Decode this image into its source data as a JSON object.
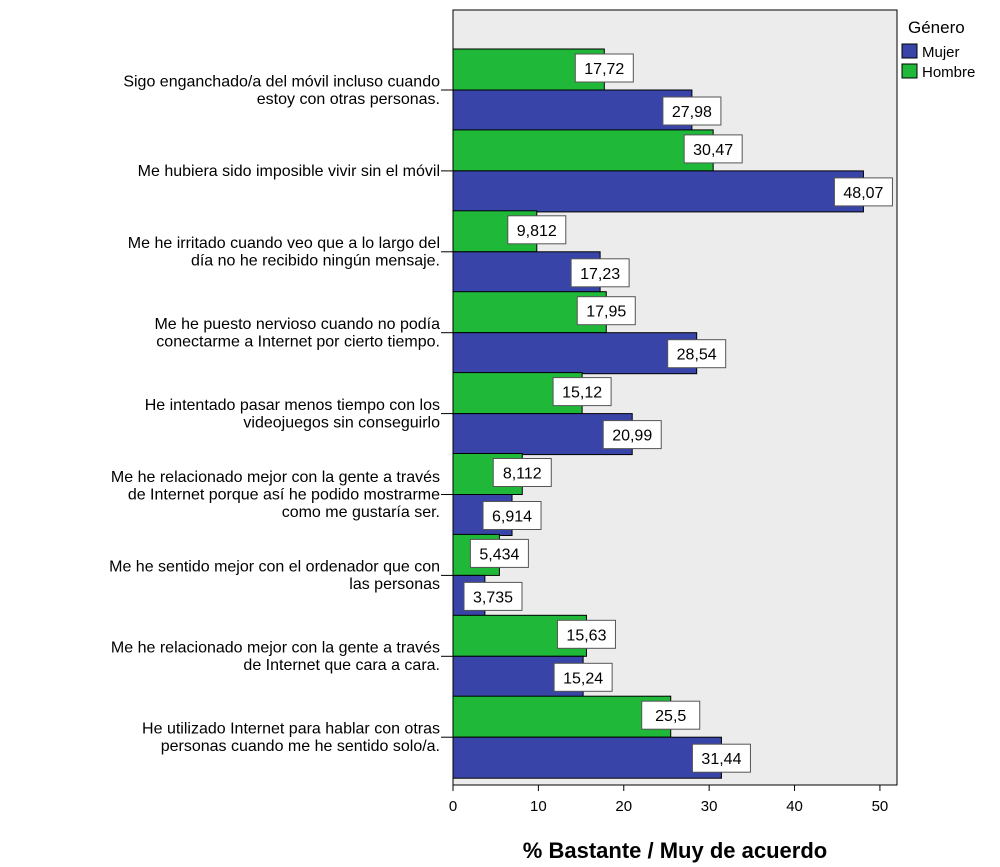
{
  "chart_data": {
    "type": "bar",
    "orientation": "horizontal",
    "xlabel": "% Bastante / Muy de acuerdo",
    "xlim": [
      0,
      52
    ],
    "xticks": [
      0,
      10,
      20,
      30,
      40,
      50
    ],
    "grid": false,
    "legend": {
      "title": "Género",
      "position": "top-right",
      "entries": [
        "Mujer",
        "Hombre"
      ]
    },
    "categories": [
      [
        "Sigo enganchado/a del móvil incluso cuando",
        "estoy con otras personas."
      ],
      [
        "Me hubiera sido imposible vivir sin el móvil"
      ],
      [
        "Me he irritado cuando veo que a lo largo del",
        "día no he recibido ningún mensaje."
      ],
      [
        "Me he puesto nervioso cuando no podía",
        "conectarme a Internet por cierto tiempo."
      ],
      [
        "He intentado pasar menos tiempo con los",
        "videojuegos sin conseguirlo"
      ],
      [
        "Me he relacionado mejor con la gente a través",
        "de Internet porque así he podido mostrarme",
        "como me gustaría ser."
      ],
      [
        "Me he sentido mejor con el ordenador que con",
        "las personas"
      ],
      [
        "Me he relacionado mejor con la gente a través",
        "de Internet que cara a cara."
      ],
      [
        "He utilizado Internet para hablar con otras",
        "personas cuando me he sentido solo/a."
      ]
    ],
    "series": [
      {
        "name": "Hombre",
        "color": "#1fb838",
        "values": [
          17.72,
          30.47,
          9.812,
          17.95,
          15.12,
          8.112,
          5.434,
          15.63,
          25.5
        ],
        "labels": [
          "17,72",
          "30,47",
          "9,812",
          "17,95",
          "15,12",
          "8,112",
          "5,434",
          "15,63",
          "25,5"
        ]
      },
      {
        "name": "Mujer",
        "color": "#3944a8",
        "values": [
          27.98,
          48.07,
          17.23,
          28.54,
          20.99,
          6.914,
          3.735,
          15.24,
          31.44
        ],
        "labels": [
          "27,98",
          "48,07",
          "17,23",
          "28,54",
          "20,99",
          "6,914",
          "3,735",
          "15,24",
          "31,44"
        ]
      }
    ],
    "plot_background": "#ececec"
  }
}
